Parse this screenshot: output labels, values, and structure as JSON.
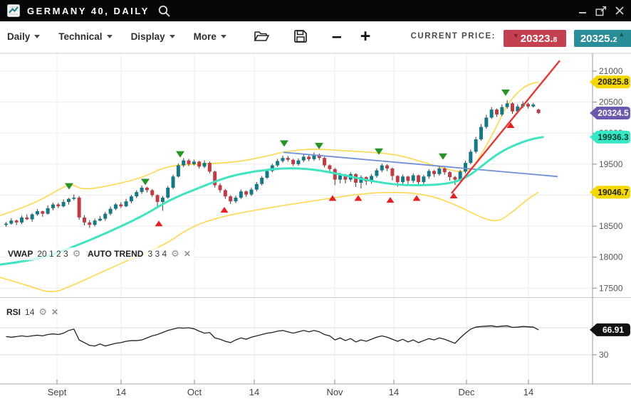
{
  "window": {
    "title": "GERMANY 40, DAILY"
  },
  "toolbar": {
    "menus": [
      {
        "label": "Daily"
      },
      {
        "label": "Technical"
      },
      {
        "label": "Display"
      },
      {
        "label": "More"
      }
    ],
    "current_price_label": "CURRENT PRICE:",
    "sell": {
      "value": "20323.8",
      "main": "20323.",
      "dec": "8"
    },
    "buy": {
      "value": "20325.2",
      "main": "20325.",
      "dec": "2"
    }
  },
  "indicators": {
    "vwap": {
      "name": "VWAP",
      "params": "20 1 2 3"
    },
    "auto_trend": {
      "name": "AUTO TREND",
      "params": "3 3 4"
    },
    "rsi": {
      "name": "RSI",
      "params": "14"
    }
  },
  "colors": {
    "candle_up": "#147987",
    "candle_down": "#c13b44",
    "wick": "#3a3a3a",
    "band": "#ffd84d",
    "vwap": "#3fe4c0",
    "trend_red": "#e23837",
    "trend_blue": "#6f8fd8",
    "signal_up": "#e32222",
    "signal_down": "#269426",
    "tag_yellow": "#f5d802",
    "tag_purple": "#6a5aad",
    "tag_cyan": "#35e9c4",
    "tag_black": "#111111",
    "sell": "#c2404f",
    "buy": "#2b8d97",
    "grid": "#ececec",
    "axis": "#999999",
    "tick_text": "#555555"
  },
  "chart_data": {
    "type": "candlestick",
    "instrument": "GERMANY 40",
    "timeframe": "DAILY",
    "y_ticks": [
      21000,
      20500,
      20000,
      19500,
      19000,
      18500,
      18000,
      17500
    ],
    "price_top": 21287,
    "price_bottom": 17354,
    "x_ticks": [
      {
        "label": "Sept",
        "x": 80
      },
      {
        "label": "14",
        "x": 170
      },
      {
        "label": "Oct",
        "x": 273
      },
      {
        "label": "14",
        "x": 357
      },
      {
        "label": "Nov",
        "x": 470
      },
      {
        "label": "14",
        "x": 553
      },
      {
        "label": "Dec",
        "x": 655
      },
      {
        "label": "14",
        "x": 742
      }
    ],
    "x_start": 6,
    "x_step": 7.33,
    "candles": [
      [
        18520,
        18565,
        18490,
        18540
      ],
      [
        18540,
        18630,
        18522,
        18590
      ],
      [
        18590,
        18605,
        18518,
        18560
      ],
      [
        18560,
        18670,
        18535,
        18640
      ],
      [
        18640,
        18690,
        18598,
        18610
      ],
      [
        18610,
        18710,
        18572,
        18690
      ],
      [
        18690,
        18775,
        18668,
        18740
      ],
      [
        18740,
        18750,
        18652,
        18700
      ],
      [
        18700,
        18835,
        18685,
        18790
      ],
      [
        18790,
        18878,
        18757,
        18850
      ],
      [
        18850,
        18875,
        18790,
        18820
      ],
      [
        18820,
        18930,
        18802,
        18890
      ],
      [
        18890,
        18955,
        18848,
        18940
      ],
      [
        18940,
        19010,
        18915,
        18960
      ],
      [
        18960,
        18985,
        18602,
        18640
      ],
      [
        18640,
        18675,
        18512,
        18560
      ],
      [
        18560,
        18598,
        18472,
        18520
      ],
      [
        18520,
        18622,
        18495,
        18590
      ],
      [
        18590,
        18665,
        18578,
        18620
      ],
      [
        18620,
        18728,
        18588,
        18700
      ],
      [
        18700,
        18815,
        18672,
        18780
      ],
      [
        18780,
        18872,
        18758,
        18850
      ],
      [
        18850,
        18885,
        18790,
        18820
      ],
      [
        18820,
        18940,
        18805,
        18900
      ],
      [
        18900,
        19005,
        18868,
        18980
      ],
      [
        18980,
        19080,
        18952,
        19050
      ],
      [
        19050,
        19155,
        19020,
        19120
      ],
      [
        19120,
        19135,
        19042,
        19080
      ],
      [
        19080,
        19098,
        18972,
        19000
      ],
      [
        19000,
        19015,
        18790,
        18890
      ],
      [
        18890,
        18988,
        18748,
        18960
      ],
      [
        18960,
        19148,
        18940,
        19120
      ],
      [
        19120,
        19330,
        19095,
        19300
      ],
      [
        19300,
        19512,
        19285,
        19480
      ],
      [
        19480,
        19598,
        19452,
        19560
      ],
      [
        19560,
        19585,
        19468,
        19500
      ],
      [
        19500,
        19572,
        19478,
        19540
      ],
      [
        19540,
        19555,
        19428,
        19460
      ],
      [
        19460,
        19560,
        19435,
        19520
      ],
      [
        19520,
        19542,
        19352,
        19380
      ],
      [
        19380,
        19398,
        19122,
        19160
      ],
      [
        19160,
        19190,
        19038,
        19080
      ],
      [
        19080,
        19098,
        18942,
        18980
      ],
      [
        18980,
        18998,
        18858,
        18900
      ],
      [
        18900,
        18992,
        18868,
        18960
      ],
      [
        18960,
        19090,
        18935,
        19060
      ],
      [
        19060,
        19075,
        18972,
        19010
      ],
      [
        19010,
        19122,
        18985,
        19090
      ],
      [
        19090,
        19212,
        19062,
        19180
      ],
      [
        19180,
        19308,
        19155,
        19280
      ],
      [
        19280,
        19422,
        19262,
        19390
      ],
      [
        19390,
        19505,
        19368,
        19480
      ],
      [
        19480,
        19585,
        19455,
        19550
      ],
      [
        19550,
        19638,
        19522,
        19600
      ],
      [
        19600,
        19632,
        19538,
        19570
      ],
      [
        19570,
        19588,
        19470,
        19500
      ],
      [
        19500,
        19592,
        19475,
        19560
      ],
      [
        19560,
        19655,
        19532,
        19620
      ],
      [
        19620,
        19645,
        19548,
        19580
      ],
      [
        19580,
        19688,
        19552,
        19650
      ],
      [
        19650,
        19672,
        19565,
        19600
      ],
      [
        19600,
        19618,
        19448,
        19480
      ],
      [
        19480,
        19495,
        19382,
        19420
      ],
      [
        19420,
        19438,
        19160,
        19250
      ],
      [
        19250,
        19360,
        19192,
        19330
      ],
      [
        19330,
        19342,
        19188,
        19250
      ],
      [
        19250,
        19370,
        19215,
        19340
      ],
      [
        19340,
        19352,
        19132,
        19200
      ],
      [
        19200,
        19318,
        19108,
        19290
      ],
      [
        19290,
        19302,
        19162,
        19220
      ],
      [
        19220,
        19340,
        19185,
        19310
      ],
      [
        19310,
        19430,
        19282,
        19400
      ],
      [
        19400,
        19510,
        19370,
        19480
      ],
      [
        19480,
        19498,
        19388,
        19430
      ],
      [
        19430,
        19445,
        19238,
        19310
      ],
      [
        19310,
        19322,
        19135,
        19210
      ],
      [
        19210,
        19332,
        19162,
        19300
      ],
      [
        19300,
        19312,
        19150,
        19230
      ],
      [
        19230,
        19352,
        19195,
        19320
      ],
      [
        19320,
        19330,
        19148,
        19210
      ],
      [
        19210,
        19325,
        19172,
        19300
      ],
      [
        19300,
        19420,
        19265,
        19390
      ],
      [
        19390,
        19405,
        19295,
        19340
      ],
      [
        19340,
        19465,
        19312,
        19430
      ],
      [
        19430,
        19448,
        19328,
        19370
      ],
      [
        19370,
        19385,
        19235,
        19290
      ],
      [
        19290,
        19310,
        19165,
        19250
      ],
      [
        19250,
        19408,
        19225,
        19380
      ],
      [
        19380,
        19555,
        19352,
        19520
      ],
      [
        19520,
        19735,
        19498,
        19700
      ],
      [
        19700,
        19940,
        19672,
        19900
      ],
      [
        19900,
        20145,
        19878,
        20100
      ],
      [
        20100,
        20295,
        20072,
        20250
      ],
      [
        20250,
        20420,
        20228,
        20380
      ],
      [
        20380,
        20398,
        20262,
        20300
      ],
      [
        20300,
        20462,
        20275,
        20420
      ],
      [
        20420,
        20530,
        20392,
        20480
      ],
      [
        20480,
        20498,
        20312,
        20350
      ],
      [
        20350,
        20465,
        20322,
        20430
      ],
      [
        20430,
        20512,
        20402,
        20470
      ],
      [
        20470,
        20492,
        20395,
        20430
      ],
      [
        20430,
        20488,
        20412,
        20460
      ],
      [
        20380,
        20392,
        20308,
        20325
      ]
    ],
    "overlays": {
      "band_upper": [
        [
          0,
          18670
        ],
        [
          45,
          18845
        ],
        [
          80,
          19075
        ],
        [
          100,
          19190
        ],
        [
          115,
          19085
        ],
        [
          150,
          19140
        ],
        [
          200,
          19280
        ],
        [
          235,
          19475
        ],
        [
          280,
          19500
        ],
        [
          330,
          19530
        ],
        [
          370,
          19615
        ],
        [
          400,
          19705
        ],
        [
          440,
          19750
        ],
        [
          480,
          19715
        ],
        [
          520,
          19695
        ],
        [
          560,
          19650
        ],
        [
          600,
          19510
        ],
        [
          625,
          19430
        ],
        [
          645,
          19370
        ],
        [
          662,
          19410
        ],
        [
          678,
          19700
        ],
        [
          695,
          20050
        ],
        [
          710,
          20420
        ],
        [
          725,
          20640
        ],
        [
          740,
          20780
        ],
        [
          756,
          20826
        ]
      ],
      "band_lower": [
        [
          0,
          17675
        ],
        [
          40,
          17540
        ],
        [
          73,
          17410
        ],
        [
          105,
          17560
        ],
        [
          145,
          17770
        ],
        [
          190,
          18000
        ],
        [
          230,
          18190
        ],
        [
          270,
          18500
        ],
        [
          310,
          18650
        ],
        [
          350,
          18740
        ],
        [
          390,
          18820
        ],
        [
          430,
          18890
        ],
        [
          470,
          18960
        ],
        [
          510,
          19025
        ],
        [
          550,
          19050
        ],
        [
          590,
          19025
        ],
        [
          620,
          18935
        ],
        [
          650,
          18790
        ],
        [
          680,
          18615
        ],
        [
          700,
          18570
        ],
        [
          720,
          18730
        ],
        [
          740,
          18930
        ],
        [
          756,
          19047
        ]
      ],
      "vwap_line": [
        [
          0,
          17880
        ],
        [
          50,
          17950
        ],
        [
          100,
          18150
        ],
        [
          150,
          18390
        ],
        [
          200,
          18660
        ],
        [
          240,
          18935
        ],
        [
          280,
          19120
        ],
        [
          320,
          19300
        ],
        [
          360,
          19390
        ],
        [
          400,
          19440
        ],
        [
          440,
          19420
        ],
        [
          480,
          19330
        ],
        [
          520,
          19230
        ],
        [
          560,
          19160
        ],
        [
          600,
          19160
        ],
        [
          625,
          19180
        ],
        [
          645,
          19230
        ],
        [
          665,
          19360
        ],
        [
          685,
          19550
        ],
        [
          705,
          19710
        ],
        [
          725,
          19820
        ],
        [
          745,
          19900
        ],
        [
          762,
          19936
        ]
      ],
      "trend_blue": [
        [
          398,
          19690
        ],
        [
          783,
          19300
        ]
      ],
      "trend_red": [
        [
          634,
          19030
        ],
        [
          786,
          21170
        ]
      ]
    },
    "signals": {
      "down": [
        [
          97,
          19090
        ],
        [
          204,
          19160
        ],
        [
          253,
          19606
        ],
        [
          399,
          19780
        ],
        [
          448,
          19740
        ],
        [
          532,
          19650
        ],
        [
          622,
          19570
        ],
        [
          710,
          20600
        ]
      ],
      "up": [
        [
          223,
          18590
        ],
        [
          315,
          18810
        ],
        [
          467,
          19000
        ],
        [
          503,
          19000
        ],
        [
          548,
          18970
        ],
        [
          585,
          19000
        ],
        [
          637,
          19040
        ],
        [
          717,
          20175
        ]
      ]
    },
    "price_tags": [
      {
        "value": "20825.8",
        "price": 20825.8,
        "bg": "#f5d802",
        "fg": "#222222"
      },
      {
        "value": "20324.5",
        "price": 20324.5,
        "bg": "#6a5aad",
        "fg": "#ffffff"
      },
      {
        "value": "19936.3",
        "price": 19936.3,
        "bg": "#35e9c4",
        "fg": "#0a3d33"
      },
      {
        "value": "19046.7",
        "price": 19046.7,
        "bg": "#f5d802",
        "fg": "#222222"
      }
    ],
    "rsi": {
      "period": 14,
      "levels": [
        70,
        30
      ],
      "last": 66.91,
      "tag": {
        "value": "66.91",
        "bg": "#111111",
        "fg": "#ffffff"
      },
      "values": [
        57,
        56,
        57,
        58,
        57,
        58,
        59,
        58,
        60,
        61,
        60,
        62,
        66,
        68,
        52,
        48,
        44,
        43,
        46,
        43,
        45,
        47,
        48,
        50,
        51,
        51,
        52,
        55,
        58,
        60,
        63,
        66,
        68,
        70,
        69.5,
        70,
        68.5,
        65,
        62,
        63,
        55,
        53,
        50,
        48,
        52,
        55,
        53,
        56,
        58,
        60,
        62,
        63,
        65,
        66,
        64,
        62,
        64,
        66,
        64,
        66,
        64,
        60,
        58,
        52,
        55,
        51,
        54,
        49,
        52,
        50,
        53,
        56,
        58,
        56,
        53,
        50,
        53,
        49,
        52,
        48,
        51,
        54,
        52,
        55,
        53,
        50,
        47,
        55,
        62,
        68,
        71,
        72,
        72.5,
        73,
        71.5,
        72.5,
        73,
        70.5,
        71,
        72,
        71.5,
        71,
        66.91
      ]
    }
  }
}
